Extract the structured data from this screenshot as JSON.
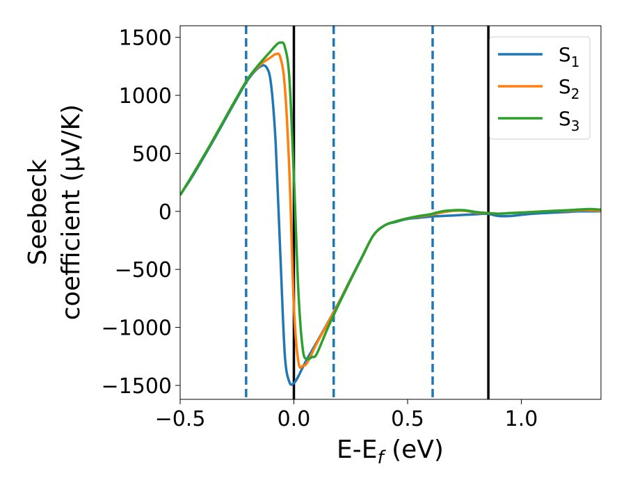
{
  "chart_data": {
    "type": "line",
    "title": "",
    "xlabel": "E-E",
    "xlabel_sub": "f",
    "xlabel_unit": " (eV)",
    "ylabel_line1": "Seebeck",
    "ylabel_line2": "coefficient  (μV/K)",
    "xlim": [
      -0.5,
      1.35
    ],
    "ylim": [
      -1620,
      1600
    ],
    "xticks": [
      -0.5,
      0.0,
      0.5,
      1.0
    ],
    "xtick_labels": [
      "−0.5",
      "0.0",
      "0.5",
      "1.0"
    ],
    "yticks": [
      -1500,
      -1000,
      -500,
      0,
      500,
      1000,
      1500
    ],
    "ytick_labels": [
      "−1500",
      "−1000",
      "−500",
      "0",
      "500",
      "1000",
      "1500"
    ],
    "grid": false,
    "legend_position": "top-right",
    "vlines_dashed": {
      "x": [
        -0.21,
        0.175,
        0.61
      ],
      "color": "#1f77b4"
    },
    "vlines_solid": {
      "x": [
        0.0,
        0.855
      ],
      "color": "#000000"
    },
    "series": [
      {
        "name": "S",
        "sub": "1",
        "color": "#1f77b4",
        "x": [
          -0.5,
          -0.45,
          -0.4,
          -0.35,
          -0.3,
          -0.25,
          -0.2,
          -0.15,
          -0.12,
          -0.1,
          -0.08,
          -0.06,
          -0.04,
          -0.02,
          0.0,
          0.02,
          0.04,
          0.06,
          0.1,
          0.15,
          0.2,
          0.25,
          0.3,
          0.35,
          0.4,
          0.45,
          0.5,
          0.55,
          0.6,
          0.65,
          0.7,
          0.75,
          0.8,
          0.85,
          0.9,
          0.95,
          1.0,
          1.05,
          1.1,
          1.15,
          1.2,
          1.25,
          1.3,
          1.35
        ],
        "y": [
          140,
          290,
          455,
          625,
          800,
          975,
          1140,
          1245,
          1240,
          1090,
          580,
          -350,
          -1230,
          -1470,
          -1480,
          -1420,
          -1340,
          -1265,
          -1130,
          -955,
          -775,
          -580,
          -390,
          -205,
          -120,
          -90,
          -65,
          -55,
          -45,
          -40,
          -35,
          -30,
          -25,
          -20,
          -40,
          -40,
          -30,
          -20,
          -15,
          -10,
          -5,
          0,
          0,
          0
        ]
      },
      {
        "name": "S",
        "sub": "2",
        "color": "#ff7f0e",
        "x": [
          -0.5,
          -0.45,
          -0.4,
          -0.35,
          -0.3,
          -0.25,
          -0.2,
          -0.15,
          -0.1,
          -0.08,
          -0.06,
          -0.04,
          -0.02,
          0.0,
          0.02,
          0.04,
          0.06,
          0.1,
          0.15,
          0.2,
          0.25,
          0.3,
          0.35,
          0.4,
          0.45,
          0.5,
          0.55,
          0.6,
          0.65,
          0.7,
          0.75,
          0.8,
          0.85,
          0.9,
          0.95,
          1.0,
          1.05,
          1.1,
          1.15,
          1.2,
          1.25,
          1.3,
          1.35
        ],
        "y": [
          140,
          300,
          465,
          635,
          810,
          985,
          1150,
          1260,
          1330,
          1355,
          1330,
          1080,
          350,
          -820,
          -1300,
          -1330,
          -1300,
          -1140,
          -960,
          -780,
          -585,
          -395,
          -205,
          -120,
          -85,
          -60,
          -45,
          -30,
          -10,
          5,
          5,
          -10,
          -15,
          -20,
          -15,
          -10,
          -5,
          0,
          5,
          5,
          10,
          10,
          5
        ]
      },
      {
        "name": "S",
        "sub": "3",
        "color": "#2ca02c",
        "x": [
          -0.5,
          -0.45,
          -0.4,
          -0.35,
          -0.3,
          -0.25,
          -0.2,
          -0.15,
          -0.1,
          -0.08,
          -0.06,
          -0.04,
          -0.02,
          0.0,
          0.02,
          0.04,
          0.06,
          0.08,
          0.1,
          0.15,
          0.2,
          0.25,
          0.3,
          0.35,
          0.4,
          0.45,
          0.5,
          0.55,
          0.6,
          0.65,
          0.7,
          0.75,
          0.8,
          0.85,
          0.9,
          0.95,
          1.0,
          1.05,
          1.1,
          1.15,
          1.2,
          1.25,
          1.3,
          1.35
        ],
        "y": [
          140,
          300,
          465,
          635,
          810,
          985,
          1150,
          1275,
          1385,
          1430,
          1455,
          1420,
          1150,
          300,
          -700,
          -1200,
          -1270,
          -1255,
          -1230,
          -1000,
          -790,
          -590,
          -395,
          -205,
          -120,
          -85,
          -60,
          -40,
          -25,
          0,
          10,
          10,
          -5,
          -15,
          -20,
          -15,
          -10,
          -5,
          0,
          5,
          10,
          15,
          20,
          15
        ]
      }
    ]
  }
}
